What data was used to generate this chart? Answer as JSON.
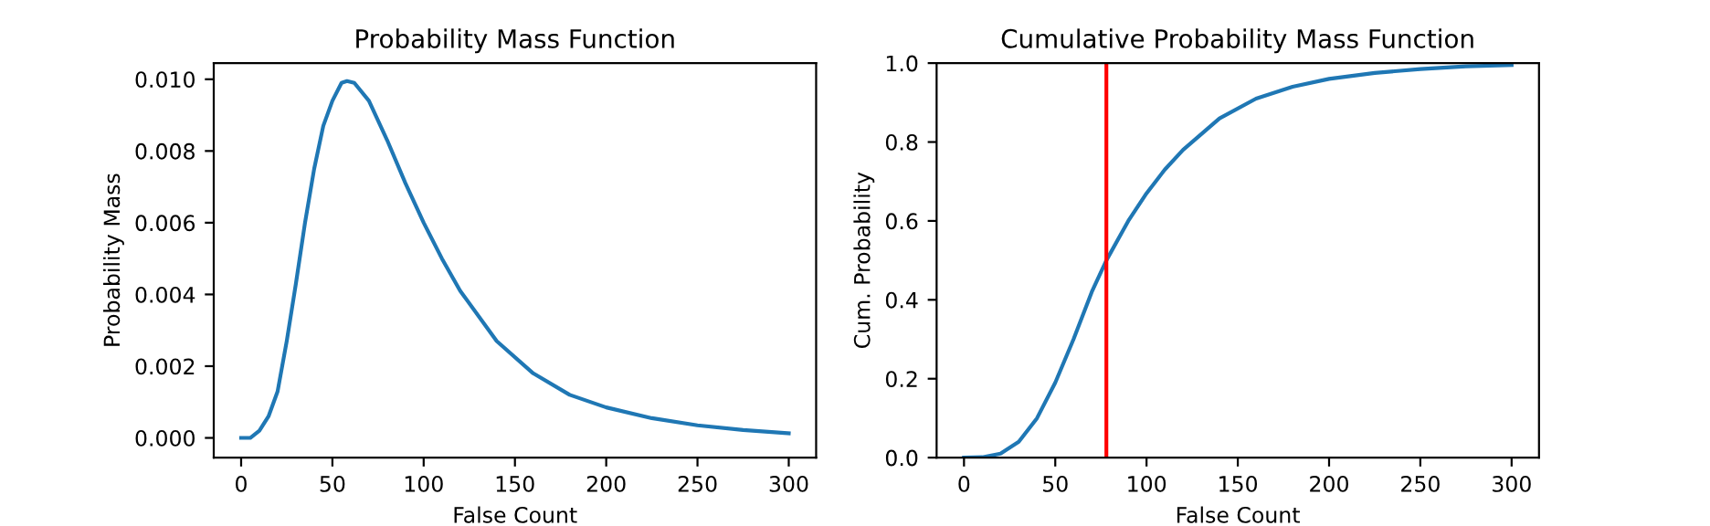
{
  "chart_data": [
    {
      "type": "line",
      "title": "Probability Mass Function",
      "xlabel": "False Count",
      "ylabel": "Probability Mass",
      "xlim": [
        -15,
        315
      ],
      "xticks": [
        0,
        50,
        100,
        150,
        200,
        250,
        300
      ],
      "ylim": [
        -0.00055,
        0.01045
      ],
      "yticks": [
        {
          "value": 0,
          "label": "0.000"
        },
        {
          "value": 0.002,
          "label": "0.002"
        },
        {
          "value": 0.004,
          "label": "0.004"
        },
        {
          "value": 0.006,
          "label": "0.006"
        },
        {
          "value": 0.008,
          "label": "0.008"
        },
        {
          "value": 0.01,
          "label": "0.010"
        }
      ],
      "grid": false,
      "marker": "none",
      "line_style": "solid",
      "series": [
        {
          "color": "#1f77b4",
          "x": [
            0,
            5,
            10,
            15,
            20,
            25,
            30,
            35,
            40,
            45,
            50,
            55,
            58,
            62,
            70,
            80,
            90,
            100,
            110,
            120,
            140,
            160,
            180,
            200,
            225,
            250,
            275,
            300
          ],
          "values": [
            0,
            0,
            0.0002,
            0.0006,
            0.0013,
            0.0027,
            0.0043,
            0.006,
            0.0075,
            0.0087,
            0.0094,
            0.0099,
            0.00995,
            0.0099,
            0.0094,
            0.0083,
            0.0071,
            0.006,
            0.005,
            0.0041,
            0.0027,
            0.0018,
            0.0012,
            0.00085,
            0.00055,
            0.00035,
            0.00022,
            0.00013
          ]
        }
      ]
    },
    {
      "type": "line",
      "title": "Cumulative Probability Mass Function",
      "xlabel": "False Count",
      "ylabel": "Cum. Probability",
      "xlim": [
        -15,
        315
      ],
      "xticks": [
        0,
        50,
        100,
        150,
        200,
        250,
        300
      ],
      "ylim": [
        0,
        1
      ],
      "yticks": [
        {
          "value": 0,
          "label": "0.0"
        },
        {
          "value": 0.2,
          "label": "0.2"
        },
        {
          "value": 0.4,
          "label": "0.4"
        },
        {
          "value": 0.6,
          "label": "0.6"
        },
        {
          "value": 0.8,
          "label": "0.8"
        },
        {
          "value": 1,
          "label": "1.0"
        }
      ],
      "grid": false,
      "marker": "none",
      "line_style": "solid",
      "ref_lines": [
        {
          "axis": "x",
          "value": 78,
          "color": "#ff0000"
        }
      ],
      "series": [
        {
          "color": "#1f77b4",
          "x": [
            0,
            10,
            20,
            30,
            40,
            50,
            60,
            70,
            78,
            90,
            100,
            110,
            120,
            140,
            160,
            180,
            200,
            225,
            250,
            275,
            300
          ],
          "values": [
            0,
            0.001,
            0.01,
            0.04,
            0.1,
            0.19,
            0.3,
            0.42,
            0.5,
            0.6,
            0.67,
            0.73,
            0.78,
            0.86,
            0.91,
            0.94,
            0.96,
            0.975,
            0.985,
            0.992,
            0.995
          ]
        }
      ]
    }
  ]
}
